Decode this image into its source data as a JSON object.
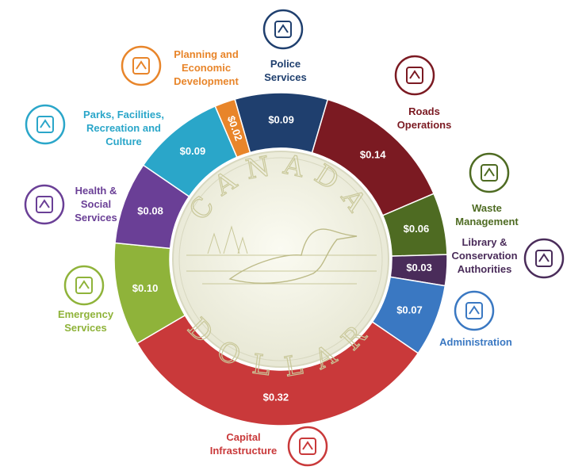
{
  "chart_data": {
    "type": "donut",
    "categories": [
      "Police Services",
      "Roads Operations",
      "Waste Management",
      "Library & Conservation Authorities",
      "Administration",
      "Capital Infrastructure",
      "Emergency Services",
      "Health & Social Services",
      "Parks, Facilities, Recreation and Culture",
      "Planning and Economic Development"
    ],
    "values": [
      0.09,
      0.14,
      0.06,
      0.03,
      0.07,
      0.32,
      0.1,
      0.08,
      0.09,
      0.02
    ],
    "value_labels": [
      "$0.09",
      "$0.14",
      "$0.06",
      "$0.03",
      "$0.07",
      "$0.32",
      "$0.10",
      "$0.08",
      "$0.09",
      "$0.02"
    ],
    "colors": [
      "#1f3f6e",
      "#7b1a22",
      "#4e6b22",
      "#4a2c5a",
      "#3a78c2",
      "#c9393a",
      "#8fb33a",
      "#6a3f96",
      "#2aa6c9",
      "#e8852a"
    ],
    "center_texts": [
      "CANADA",
      "DOLLAR"
    ]
  }
}
